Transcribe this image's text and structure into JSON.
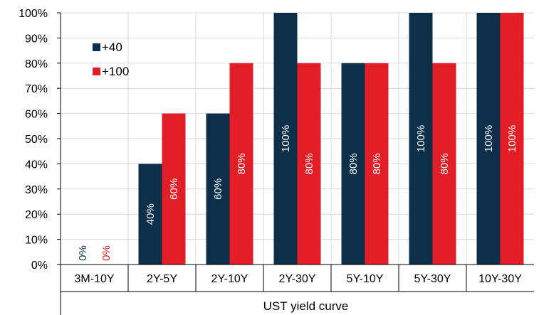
{
  "chart_data": {
    "type": "bar",
    "title": "",
    "xlabel": "UST yield curve",
    "ylabel": "",
    "ylim": [
      0,
      100
    ],
    "yticks": [
      0,
      10,
      20,
      30,
      40,
      50,
      60,
      70,
      80,
      90,
      100
    ],
    "ytick_labels": [
      "0%",
      "10%",
      "20%",
      "30%",
      "40%",
      "50%",
      "60%",
      "70%",
      "80%",
      "90%",
      "100%"
    ],
    "categories": [
      "3M-10Y",
      "2Y-5Y",
      "2Y-10Y",
      "2Y-30Y",
      "5Y-10Y",
      "5Y-30Y",
      "10Y-30Y"
    ],
    "series": [
      {
        "name": "+40",
        "color": "#0d2f4a",
        "values": [
          0,
          40,
          60,
          100,
          80,
          100,
          100
        ],
        "labels": [
          "0%",
          "40%",
          "60%",
          "100%",
          "80%",
          "100%",
          "100%"
        ]
      },
      {
        "name": "+100",
        "color": "#e31e26",
        "values": [
          0,
          60,
          80,
          80,
          80,
          80,
          100
        ],
        "labels": [
          "0%",
          "60%",
          "80%",
          "80%",
          "80%",
          "80%",
          "100%"
        ]
      }
    ],
    "legend_position": "top-left",
    "grid": true
  }
}
